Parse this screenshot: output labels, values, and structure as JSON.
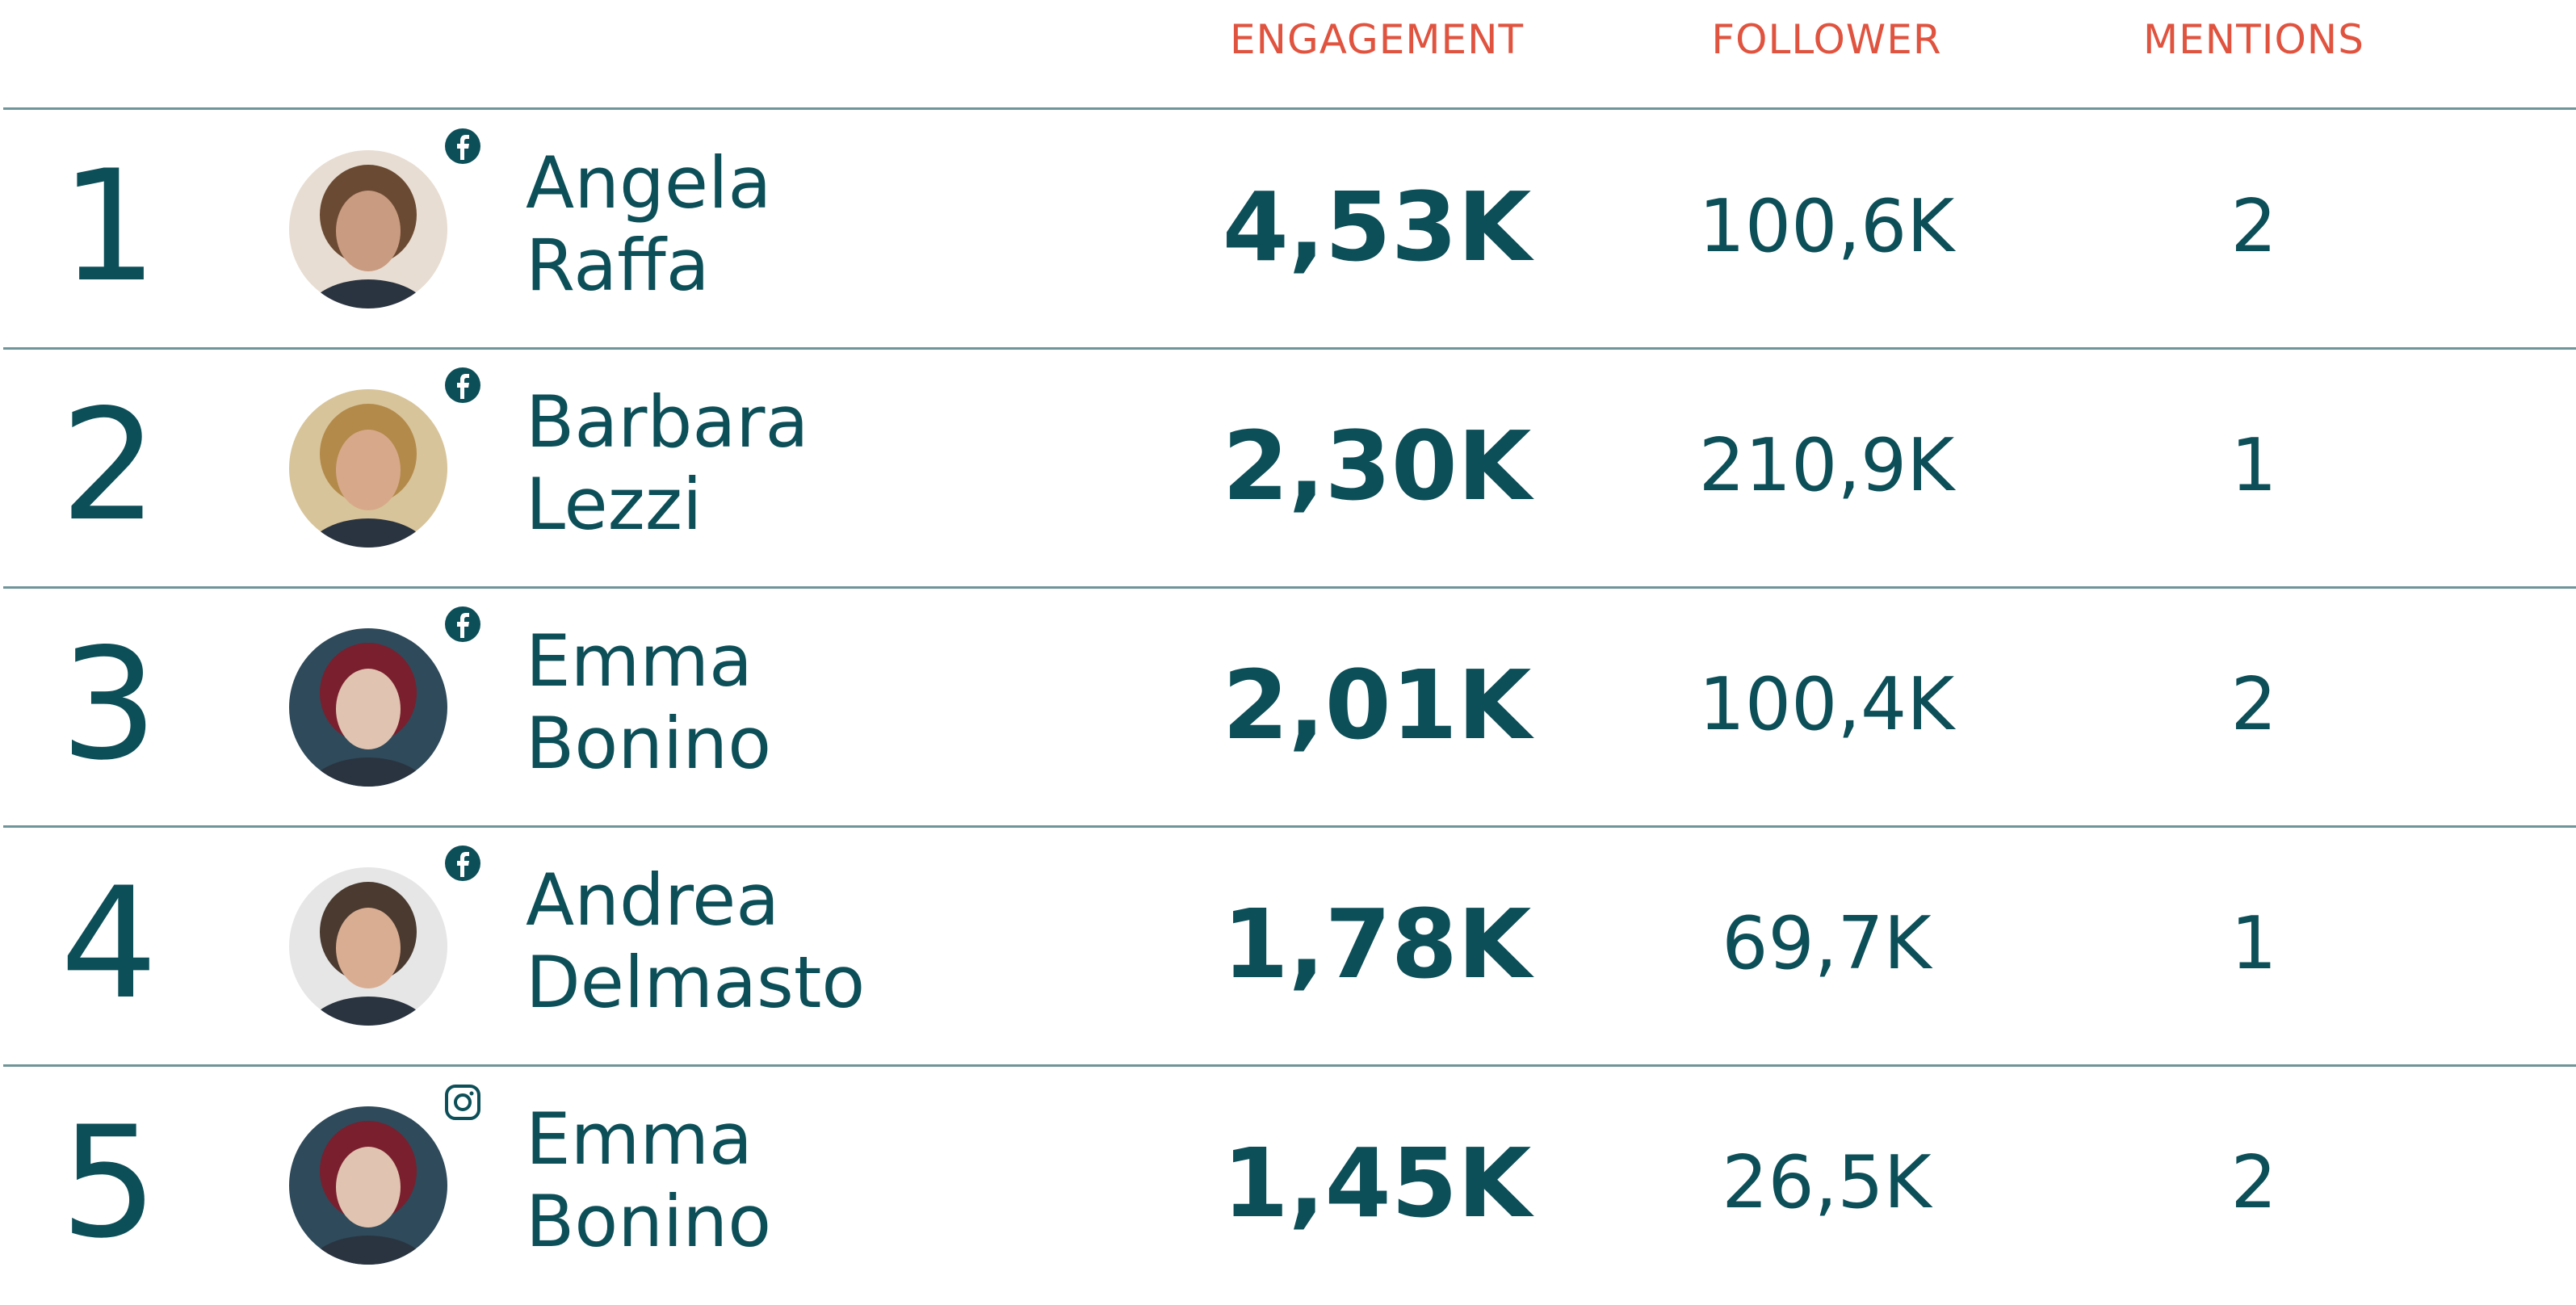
{
  "table": {
    "header": [
      "ENGAGEMENT",
      "FOLLOWER",
      "MENTIONS"
    ],
    "rows": [
      {
        "rank": "1",
        "name": [
          "Angela",
          "Raffa"
        ],
        "engagement": "4,53K",
        "follower": "100,6K",
        "mentions": "2"
      },
      {
        "rank": "2",
        "name": [
          "Barbara",
          "Lezzi"
        ],
        "engagement": "2,30K",
        "follower": "210,9K",
        "mentions": "1"
      },
      {
        "rank": "3",
        "name": [
          "Emma",
          "Bonino"
        ],
        "engagement": "2,01K",
        "follower": "100,4K",
        "mentions": "2"
      },
      {
        "rank": "4",
        "name": [
          "Andrea",
          "Delmasto"
        ],
        "engagement": "1,78K",
        "follower": "69,7K",
        "mentions": "1"
      },
      {
        "rank": "5",
        "name": [
          "Emma",
          "Bonino"
        ],
        "engagement": "1,45K",
        "follower": "26,5K",
        "mentions": "2"
      }
    ]
  }
}
